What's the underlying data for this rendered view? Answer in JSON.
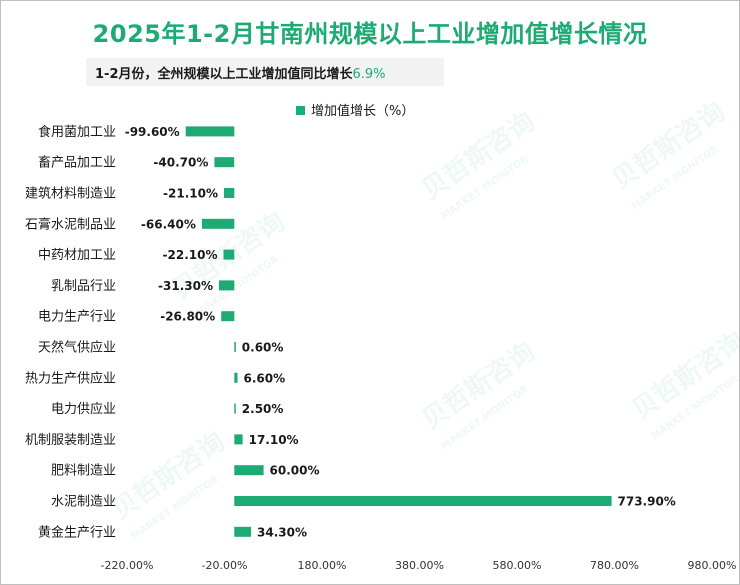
{
  "chart_data": {
    "type": "bar",
    "orientation": "horizontal",
    "title": "2025年1-2月甘南州规模以上工业增加值增长情况",
    "subtitle": "1-2月份，全州规模以上工业增加值同比增长",
    "subtitle_value": "6.9%",
    "categories": [
      "食用菌加工业",
      "畜产品加工业",
      "建筑材料制造业",
      "石膏水泥制品业",
      "中药材加工业",
      "乳制品行业",
      "电力生产行业",
      "天然气供应业",
      "热力生产供应业",
      "电力供应业",
      "机制服装制造业",
      "肥料制造业",
      "水泥制造业",
      "黄金生产行业"
    ],
    "series": [
      {
        "name": "增加值增长（%）",
        "values": [
          -99.6,
          -40.7,
          -21.1,
          -66.4,
          -22.1,
          -31.3,
          -26.8,
          0.6,
          6.6,
          2.5,
          17.1,
          60.0,
          773.9,
          34.3
        ],
        "labels": [
          "-99.60%",
          "-40.70%",
          "-21.10%",
          "-66.40%",
          "-22.10%",
          "-31.30%",
          "-26.80%",
          "0.60%",
          "6.60%",
          "2.50%",
          "17.10%",
          "60.00%",
          "773.90%",
          "34.30%"
        ]
      }
    ],
    "xlim": [
      -220,
      980
    ],
    "ticks": [
      -220,
      -20,
      180,
      380,
      580,
      780,
      980
    ],
    "tick_labels": [
      "-220.00%",
      "-20.00%",
      "180.00%",
      "380.00%",
      "580.00%",
      "780.00%",
      "980.00%"
    ],
    "grid": false,
    "legend_position": "top",
    "colors": {
      "bar": "#1daa73",
      "title": "#1daa73"
    },
    "watermark": {
      "cn": "贝哲斯咨询",
      "en": "MARKET MONITOR"
    }
  }
}
